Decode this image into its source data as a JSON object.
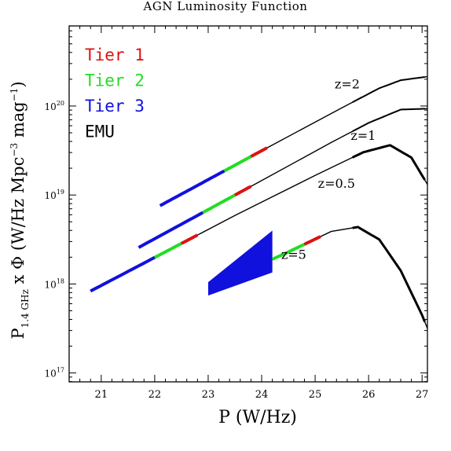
{
  "chart_data": {
    "type": "line",
    "title": "AGN Luminosity Function",
    "xlabel": "P (W/Hz)",
    "ylabel": "P1.4 GHz x Φ (W/Hz Mpc−3 mag−1)",
    "xlim": [
      20.4,
      27.1
    ],
    "ylim": [
      16.9,
      20.9
    ],
    "y_log": true,
    "x_ticks": [
      "21",
      "22",
      "23",
      "24",
      "25",
      "26",
      "27"
    ],
    "y_ticks": [
      {
        "value": 17,
        "base": "10",
        "exp": "17"
      },
      {
        "value": 18,
        "base": "10",
        "exp": "18"
      },
      {
        "value": 19,
        "base": "10",
        "exp": "19"
      },
      {
        "value": 20,
        "base": "10",
        "exp": "20"
      }
    ],
    "legend": [
      {
        "label": "Tier 1",
        "color": "#dd1111"
      },
      {
        "label": "Tier 2",
        "color": "#22dd22"
      },
      {
        "label": "Tier 3",
        "color": "#1111dd"
      },
      {
        "label": "EMU",
        "color": "#000000"
      }
    ],
    "curves": [
      {
        "label": "z=2",
        "x": [
          22.1,
          24.1,
          25.5,
          26.2,
          26.6,
          27.1
        ],
        "y": [
          18.88,
          19.53,
          19.98,
          20.2,
          20.29,
          20.33
        ]
      },
      {
        "label": "z=1",
        "x": [
          21.7,
          23.9,
          25.3,
          26.0,
          26.6,
          27.1
        ],
        "y": [
          18.41,
          19.13,
          19.59,
          19.81,
          19.96,
          19.97
        ]
      },
      {
        "label": "z=0.5",
        "x": [
          20.8,
          23.5,
          25.0,
          25.9,
          26.4,
          26.8,
          27.1
        ],
        "y": [
          17.92,
          18.77,
          19.22,
          19.48,
          19.56,
          19.42,
          19.12
        ]
      },
      {
        "label": "z=5",
        "x": [
          23.0,
          24.5,
          25.3,
          25.8,
          26.2,
          26.6,
          27.0,
          27.1
        ],
        "y": [
          17.95,
          18.36,
          18.59,
          18.64,
          18.5,
          18.15,
          17.65,
          17.5
        ]
      }
    ],
    "tiers": [
      {
        "tier": "Tier 3",
        "curve": "z=2",
        "x": [
          22.1,
          23.3
        ]
      },
      {
        "tier": "Tier 2",
        "curve": "z=2",
        "x": [
          23.3,
          23.8
        ]
      },
      {
        "tier": "Tier 1",
        "curve": "z=2",
        "x": [
          23.8,
          24.1
        ]
      },
      {
        "tier": "Tier 3",
        "curve": "z=1",
        "x": [
          21.7,
          22.9
        ]
      },
      {
        "tier": "Tier 2",
        "curve": "z=1",
        "x": [
          22.9,
          23.5
        ]
      },
      {
        "tier": "Tier 1",
        "curve": "z=1",
        "x": [
          23.5,
          23.8
        ]
      },
      {
        "tier": "Tier 3",
        "curve": "z=0.5",
        "x": [
          20.8,
          22.0
        ]
      },
      {
        "tier": "Tier 2",
        "curve": "z=0.5",
        "x": [
          22.0,
          22.5
        ]
      },
      {
        "tier": "Tier 1",
        "curve": "z=0.5",
        "x": [
          22.5,
          22.8
        ]
      },
      {
        "tier": "Tier 3",
        "curve": "z=5",
        "x": [
          23.0,
          24.2
        ],
        "y_band": [
          [
            17.87,
            18.02
          ],
          [
            18.13,
            18.6
          ]
        ]
      },
      {
        "tier": "Tier 2",
        "curve": "z=5",
        "x": [
          24.2,
          24.8
        ]
      },
      {
        "tier": "Tier 1",
        "curve": "z=5",
        "x": [
          24.8,
          25.1
        ]
      }
    ]
  }
}
